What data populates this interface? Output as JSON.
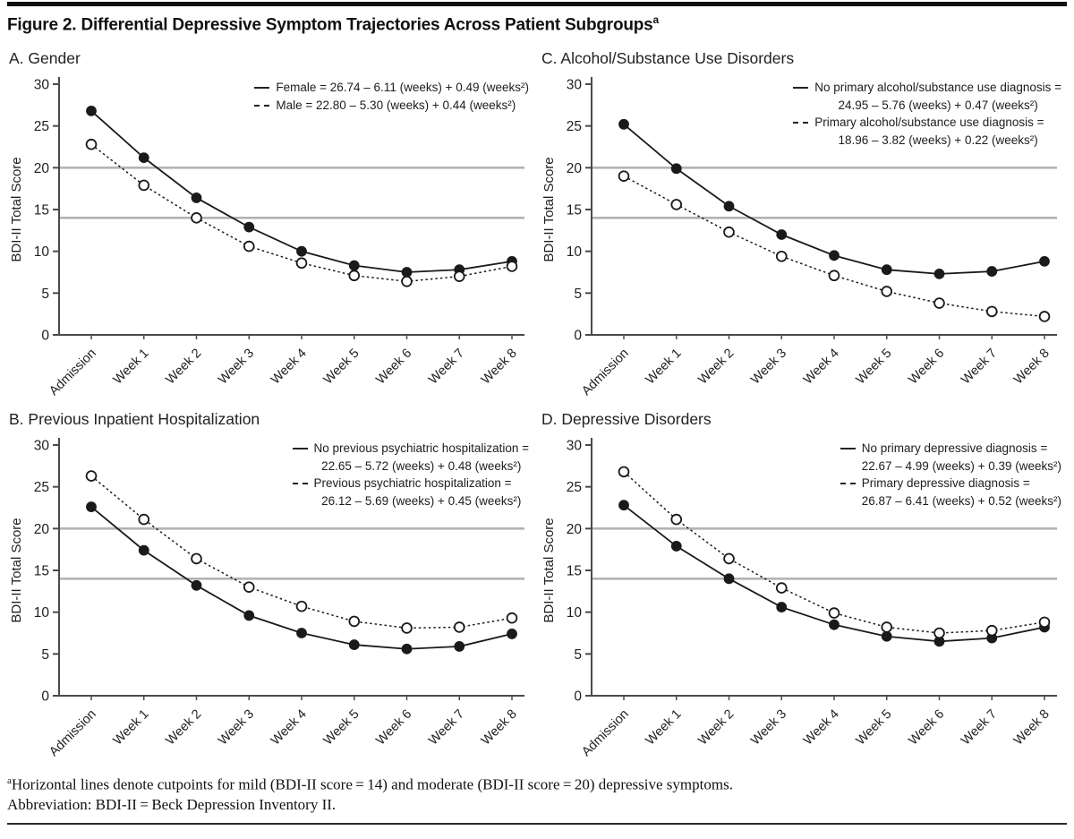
{
  "page": {
    "title": "Figure 2. Differential Depressive Symptom Trajectories Across Patient Subgroups",
    "title_superscript": "a",
    "footnote_superscript": "a",
    "footnote_line1": "Horizontal lines denote cutpoints for mild (BDI-II score = 14) and moderate (BDI-II score = 20) depressive symptoms.",
    "footnote_line2": "Abbreviation: BDI-II = Beck Depression Inventory II."
  },
  "colors": {
    "series_line": "#1a1a1a",
    "cutpoint_line": "#b3b3b3",
    "axis_line": "#4a4a4a",
    "text": "#1f1f1f"
  },
  "chart_data": [
    {
      "id": "A",
      "type": "line",
      "title": "A. Gender",
      "ylabel": "BDI-II Total Score",
      "ylim": [
        0,
        30
      ],
      "yticks": [
        0,
        5,
        10,
        15,
        20,
        25,
        30
      ],
      "categories": [
        "Admission",
        "Week 1",
        "Week 2",
        "Week 3",
        "Week 4",
        "Week 5",
        "Week 6",
        "Week 7",
        "Week 8"
      ],
      "cutpoints": [
        14,
        20
      ],
      "legend_position": "top-right",
      "series": [
        {
          "name": "Female",
          "style": "solid",
          "marker": "filled",
          "legend_lines": [
            "Female = 26.74 – 6.11 (weeks) + 0.49 (weeks²)"
          ],
          "values": [
            26.8,
            21.2,
            16.4,
            12.9,
            10.0,
            8.3,
            7.5,
            7.8,
            8.8
          ]
        },
        {
          "name": "Male",
          "style": "dashed",
          "marker": "open",
          "legend_lines": [
            "Male = 22.80 – 5.30 (weeks) + 0.44 (weeks²)"
          ],
          "values": [
            22.8,
            17.9,
            14.0,
            10.6,
            8.6,
            7.1,
            6.4,
            7.0,
            8.2
          ]
        }
      ]
    },
    {
      "id": "C",
      "type": "line",
      "title": "C. Alcohol/Substance Use Disorders",
      "ylabel": "BDI-II Total Score",
      "ylim": [
        0,
        30
      ],
      "yticks": [
        0,
        5,
        10,
        15,
        20,
        25,
        30
      ],
      "categories": [
        "Admission",
        "Week 1",
        "Week 2",
        "Week 3",
        "Week 4",
        "Week 5",
        "Week 6",
        "Week 7",
        "Week 8"
      ],
      "cutpoints": [
        14,
        20
      ],
      "legend_position": "top-right",
      "series": [
        {
          "name": "No primary alcohol/substance use diagnosis",
          "style": "solid",
          "marker": "filled",
          "legend_lines": [
            "No primary alcohol/substance use diagnosis =",
            "24.95 – 5.76 (weeks) + 0.47 (weeks²)"
          ],
          "values": [
            25.2,
            19.9,
            15.4,
            12.0,
            9.5,
            7.8,
            7.3,
            7.6,
            8.8
          ]
        },
        {
          "name": "Primary alcohol/substance use diagnosis",
          "style": "dashed",
          "marker": "open",
          "legend_lines": [
            "Primary alcohol/substance use diagnosis =",
            "18.96 – 3.82 (weeks) + 0.22 (weeks²)"
          ],
          "values": [
            19.0,
            15.6,
            12.3,
            9.4,
            7.1,
            5.2,
            3.8,
            2.8,
            2.2
          ]
        }
      ]
    },
    {
      "id": "B",
      "type": "line",
      "title": "B. Previous Inpatient Hospitalization",
      "ylabel": "BDI-II Total Score",
      "ylim": [
        0,
        30
      ],
      "yticks": [
        0,
        5,
        10,
        15,
        20,
        25,
        30
      ],
      "categories": [
        "Admission",
        "Week 1",
        "Week 2",
        "Week 3",
        "Week 4",
        "Week 5",
        "Week 6",
        "Week 7",
        "Week 8"
      ],
      "cutpoints": [
        14,
        20
      ],
      "legend_position": "top-right",
      "series": [
        {
          "name": "No previous psychiatric hospitalization",
          "style": "solid",
          "marker": "filled",
          "legend_lines": [
            "No previous psychiatric hospitalization =",
            "22.65 – 5.72 (weeks) + 0.48 (weeks²)"
          ],
          "values": [
            22.6,
            17.4,
            13.2,
            9.6,
            7.5,
            6.1,
            5.6,
            5.9,
            7.4
          ]
        },
        {
          "name": "Previous psychiatric hospitalization",
          "style": "dashed",
          "marker": "open",
          "legend_lines": [
            "Previous psychiatric hospitalization =",
            "26.12 – 5.69 (weeks) + 0.45 (weeks²)"
          ],
          "values": [
            26.3,
            21.1,
            16.4,
            13.0,
            10.7,
            8.9,
            8.1,
            8.2,
            9.3
          ]
        }
      ]
    },
    {
      "id": "D",
      "type": "line",
      "title": "D. Depressive Disorders",
      "ylabel": "BDI-II Total Score",
      "ylim": [
        0,
        30
      ],
      "yticks": [
        0,
        5,
        10,
        15,
        20,
        25,
        30
      ],
      "categories": [
        "Admission",
        "Week 1",
        "Week 2",
        "Week 3",
        "Week 4",
        "Week 5",
        "Week 6",
        "Week 7",
        "Week 8"
      ],
      "cutpoints": [
        14,
        20
      ],
      "legend_position": "top-right",
      "series": [
        {
          "name": "No primary depressive diagnosis",
          "style": "solid",
          "marker": "filled",
          "legend_lines": [
            "No primary depressive diagnosis =",
            "22.67 – 4.99 (weeks) + 0.39 (weeks²)"
          ],
          "values": [
            22.8,
            17.9,
            14.0,
            10.6,
            8.5,
            7.1,
            6.5,
            6.9,
            8.2
          ]
        },
        {
          "name": "Primary depressive diagnosis",
          "style": "dashed",
          "marker": "open",
          "legend_lines": [
            "Primary depressive diagnosis =",
            "26.87 – 6.41 (weeks) + 0.52 (weeks²)"
          ],
          "values": [
            26.8,
            21.1,
            16.4,
            12.9,
            9.9,
            8.2,
            7.5,
            7.8,
            8.8
          ]
        }
      ]
    }
  ]
}
